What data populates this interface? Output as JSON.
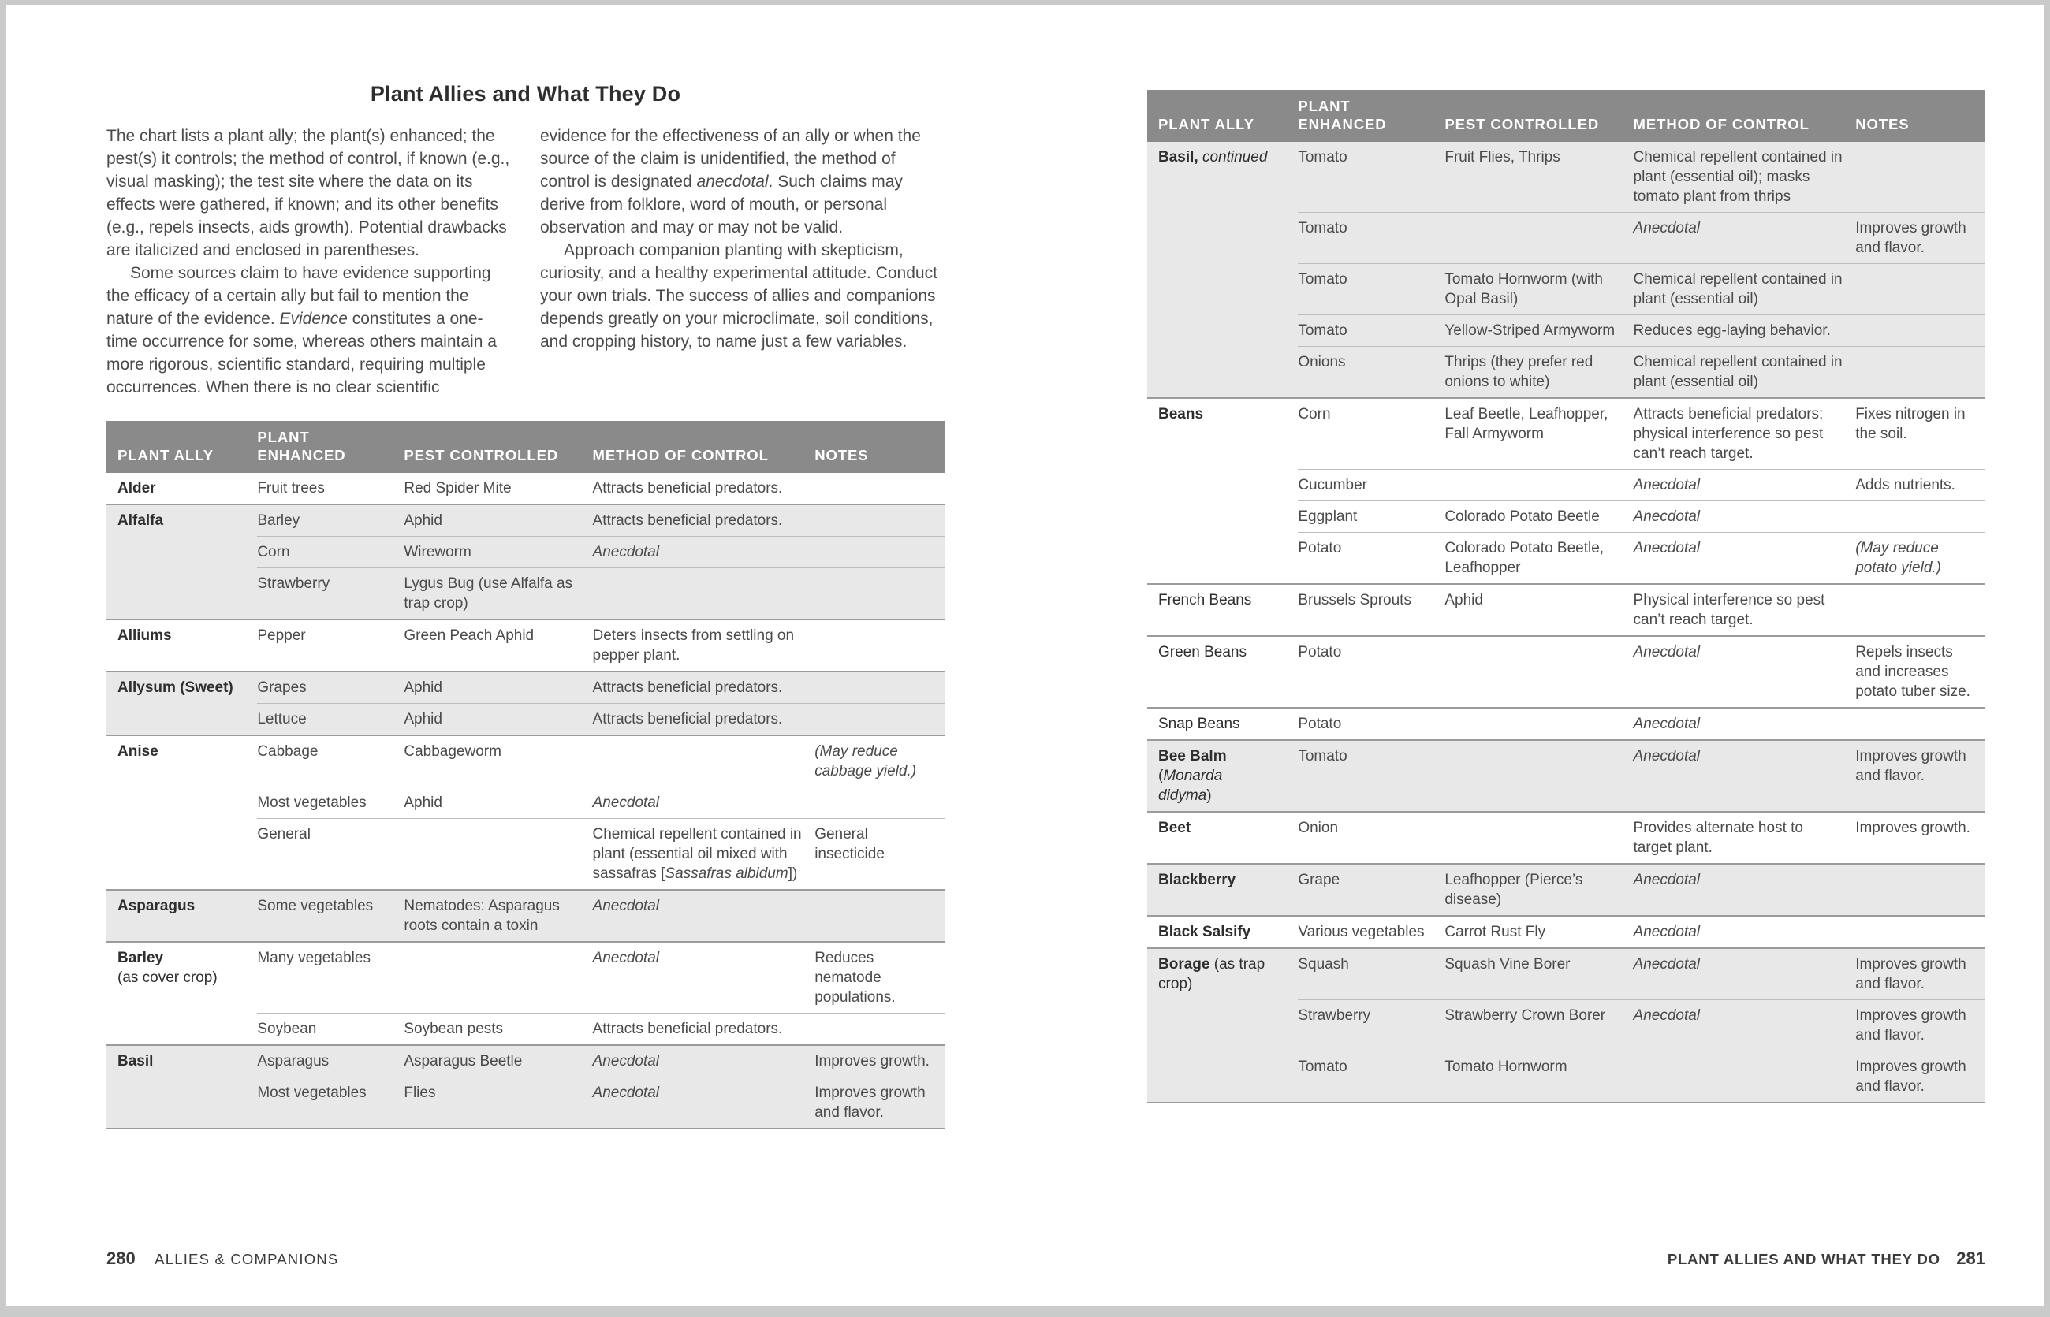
{
  "colors": {
    "table_header_bg": "#8a8a8a",
    "table_header_text": "#ffffff",
    "row_shade": "#e8e8e8",
    "group_rule": "#9b9b9b",
    "inner_rule": "#bdbdbd",
    "body_text": "#4a4a4a",
    "heading_text": "#2e2e2e",
    "frame_border": "#c9cbca"
  },
  "left_page": {
    "title": "Plant Allies and What They Do",
    "intro": {
      "col1_p1": "The chart lists a plant ally; the plant(s) enhanced; the pest(s) it controls; the method of control, if known (e.g., visual masking); the test site where the data on its effects were gathered, if known; and its other benefits (e.g., repels insects, aids growth). Potential drawbacks are italicized and enclosed in parentheses.",
      "col1_p2": "Some sources claim to have evidence supporting the efficacy of a certain ally but fail to mention the nature of the evidence. <i>Evidence</i> constitutes a one-time occurrence for some, whereas others maintain a more rigorous, scientific standard, requiring multiple occurrences. When there is no clear scientific",
      "col2_p1": "evidence for the effectiveness of an ally or when the source of the claim is unidentified, the method of control is designated <i>anecdotal</i>. Such claims may derive from folklore, word of mouth, or personal observation and may or may not be valid.",
      "col2_p2": "Approach companion planting with skepticism, curiosity, and a healthy experimental attitude. Conduct your own trials. The success of allies and companions depends greatly on your microclimate, soil conditions, and cropping history, to name just a few variables."
    },
    "footer": {
      "page_number": "280",
      "label": "ALLIES & COMPANIONS"
    }
  },
  "right_page": {
    "footer": {
      "label": "PLANT ALLIES AND WHAT THEY DO",
      "page_number": "281"
    }
  },
  "table_headers": [
    "PLANT ALLY",
    "PLANT ENHANCED",
    "PEST CONTROLLED",
    "METHOD OF CONTROL",
    "NOTES"
  ],
  "left_table": {
    "groups": [
      {
        "ally": "<b>Alder</b>",
        "shaded": false,
        "rows": [
          {
            "enhanced": "Fruit trees",
            "pest": "Red Spider Mite",
            "method": "Attracts beneficial predators.",
            "notes": ""
          }
        ]
      },
      {
        "ally": "<b>Alfalfa</b>",
        "shaded": true,
        "rows": [
          {
            "enhanced": "Barley",
            "pest": "Aphid",
            "method": "Attracts beneficial predators.",
            "notes": ""
          },
          {
            "enhanced": "Corn",
            "pest": "Wireworm",
            "method": "<i>Anecdotal</i>",
            "notes": ""
          },
          {
            "enhanced": "Strawberry",
            "pest": "Lygus Bug (use Alfalfa as trap crop)",
            "method": "",
            "notes": ""
          }
        ]
      },
      {
        "ally": "<b>Alliums</b>",
        "shaded": false,
        "rows": [
          {
            "enhanced": "Pepper",
            "pest": "Green Peach Aphid",
            "method": "Deters insects from settling on pepper plant.",
            "notes": ""
          }
        ]
      },
      {
        "ally": "<b>Allysum (Sweet)</b>",
        "shaded": true,
        "rows": [
          {
            "enhanced": "Grapes",
            "pest": "Aphid",
            "method": "Attracts beneficial predators.",
            "notes": ""
          },
          {
            "enhanced": "Lettuce",
            "pest": "Aphid",
            "method": "Attracts beneficial predators.",
            "notes": ""
          }
        ]
      },
      {
        "ally": "<b>Anise</b>",
        "shaded": false,
        "rows": [
          {
            "enhanced": "Cabbage",
            "pest": "Cabbageworm",
            "method": "",
            "notes": "<i>(May reduce cabbage yield.)</i>"
          },
          {
            "enhanced": "Most vegetables",
            "pest": "Aphid",
            "method": "<i>Anecdotal</i>",
            "notes": ""
          },
          {
            "enhanced": "General",
            "pest": "",
            "method": "Chemical repellent contained in plant (essential oil mixed with sassafras [<i>Sassafras albidum</i>])",
            "notes": "General insecticide"
          }
        ]
      },
      {
        "ally": "<b>Asparagus</b>",
        "shaded": true,
        "rows": [
          {
            "enhanced": "Some vegetables",
            "pest": "Nematodes: Asparagus roots contain a toxin",
            "method": "<i>Anecdotal</i>",
            "notes": ""
          }
        ]
      },
      {
        "ally": "<b>Barley</b><br>(as cover crop)",
        "shaded": false,
        "rows": [
          {
            "enhanced": "Many vegetables",
            "pest": "",
            "method": "<i>Anecdotal</i>",
            "notes": "Reduces nematode populations."
          },
          {
            "enhanced": "Soybean",
            "pest": "Soybean pests",
            "method": "Attracts beneficial predators.",
            "notes": ""
          }
        ]
      },
      {
        "ally": "<b>Basil</b>",
        "shaded": true,
        "rows": [
          {
            "enhanced": "Asparagus",
            "pest": "Asparagus Beetle",
            "method": "<i>Anecdotal</i>",
            "notes": "Improves growth."
          },
          {
            "enhanced": "Most vegetables",
            "pest": "Flies",
            "method": "<i>Anecdotal</i>",
            "notes": "Improves growth and flavor."
          }
        ]
      }
    ]
  },
  "right_table": {
    "groups": [
      {
        "ally": "<b>Basil,</b> <i>continued</i>",
        "shaded": true,
        "rows": [
          {
            "enhanced": "Tomato",
            "pest": "Fruit Flies, Thrips",
            "method": "Chemical repellent contained in plant (essential oil); masks tomato plant from thrips",
            "notes": ""
          },
          {
            "enhanced": "Tomato",
            "pest": "",
            "method": "<i>Anecdotal</i>",
            "notes": "Improves growth and flavor."
          },
          {
            "enhanced": "Tomato",
            "pest": "Tomato Hornworm (with Opal Basil)",
            "method": "Chemical repellent contained in plant (essential oil)",
            "notes": ""
          },
          {
            "enhanced": "Tomato",
            "pest": "Yellow-Striped Armyworm",
            "method": "Reduces egg-laying behavior.",
            "notes": ""
          },
          {
            "enhanced": "Onions",
            "pest": "Thrips (they prefer red onions to white)",
            "method": "Chemical repellent contained in plant (essential oil)",
            "notes": ""
          }
        ]
      },
      {
        "ally": "<b>Beans</b>",
        "shaded": false,
        "rows": [
          {
            "enhanced": "Corn",
            "pest": "Leaf Beetle, Leafhopper, Fall Armyworm",
            "method": "Attracts beneficial predators; physical interference so pest can’t reach target.",
            "notes": "Fixes nitrogen in the soil."
          },
          {
            "enhanced": "Cucumber",
            "pest": "",
            "method": "<i>Anecdotal</i>",
            "notes": "Adds nutrients."
          },
          {
            "enhanced": "Eggplant",
            "pest": "Colorado Potato Beetle",
            "method": "<i>Anecdotal</i>",
            "notes": ""
          },
          {
            "enhanced": "Potato",
            "pest": "Colorado Potato Beetle, Leafhopper",
            "method": "<i>Anecdotal</i>",
            "notes": "<i>(May reduce potato yield.)</i>"
          }
        ]
      },
      {
        "ally": "French Beans",
        "shaded": false,
        "rows": [
          {
            "enhanced": "Brussels Sprouts",
            "pest": "Aphid",
            "method": "Physical interference so pest can’t reach target.",
            "notes": ""
          }
        ]
      },
      {
        "ally": "Green Beans",
        "shaded": false,
        "rows": [
          {
            "enhanced": "Potato",
            "pest": "",
            "method": "<i>Anecdotal</i>",
            "notes": "Repels insects and increases potato tuber size."
          }
        ]
      },
      {
        "ally": "Snap Beans",
        "shaded": false,
        "rows": [
          {
            "enhanced": "Potato",
            "pest": "",
            "method": "<i>Anecdotal</i>",
            "notes": ""
          }
        ]
      },
      {
        "ally": "<b>Bee Balm</b><br>(<i>Monarda<br>didyma</i>)",
        "shaded": true,
        "rows": [
          {
            "enhanced": "Tomato",
            "pest": "",
            "method": "<i>Anecdotal</i>",
            "notes": "Improves growth and flavor."
          }
        ]
      },
      {
        "ally": "<b>Beet</b>",
        "shaded": false,
        "rows": [
          {
            "enhanced": "Onion",
            "pest": "",
            "method": "Provides alternate host to target plant.",
            "notes": "Improves growth."
          }
        ]
      },
      {
        "ally": "<b>Blackberry</b>",
        "shaded": true,
        "rows": [
          {
            "enhanced": "Grape",
            "pest": "Leafhopper (Pierce’s disease)",
            "method": "<i>Anecdotal</i>",
            "notes": ""
          }
        ]
      },
      {
        "ally": "<b>Black Salsify</b>",
        "shaded": false,
        "rows": [
          {
            "enhanced": "Various vegetables",
            "pest": "Carrot Rust Fly",
            "method": "<i>Anecdotal</i>",
            "notes": ""
          }
        ]
      },
      {
        "ally": "<b>Borage</b> (as trap crop)",
        "shaded": true,
        "rows": [
          {
            "enhanced": "Squash",
            "pest": "Squash Vine Borer",
            "method": "<i>Anecdotal</i>",
            "notes": "Improves growth and flavor."
          },
          {
            "enhanced": "Strawberry",
            "pest": "Strawberry Crown Borer",
            "method": "<i>Anecdotal</i>",
            "notes": "Improves growth and flavor."
          },
          {
            "enhanced": "Tomato",
            "pest": "Tomato Hornworm",
            "method": "",
            "notes": "Improves growth and flavor."
          }
        ]
      }
    ]
  }
}
